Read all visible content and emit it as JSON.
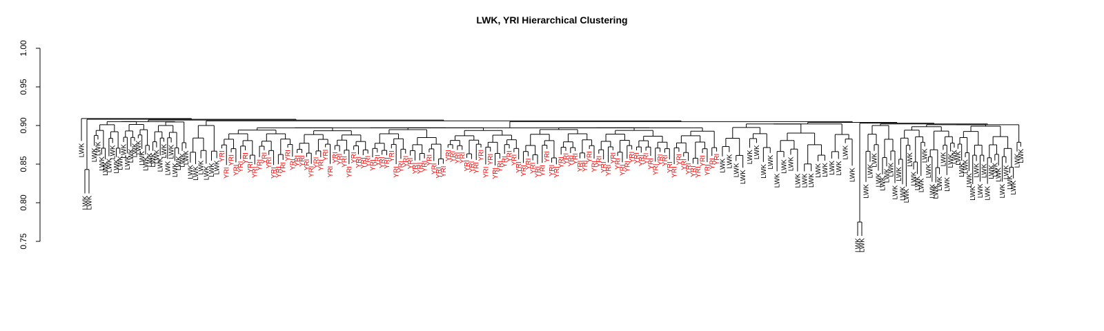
{
  "chart_data": {
    "type": "dendrogram",
    "title": "LWK, YRI Hierarchical Clustering",
    "xlabel": "",
    "ylabel": "",
    "ylim": [
      0.75,
      1.0
    ],
    "yticks": [
      "0.75",
      "0.80",
      "0.85",
      "0.90",
      "0.95",
      "1.00"
    ],
    "grid": false,
    "legend": "none",
    "leaf_label_groups": [
      "LWK",
      "YRI"
    ],
    "colors": {
      "LWK": "#000000",
      "YRI": "#ff0000",
      "branches": "#000000"
    },
    "root_height": 0.907,
    "top_split_heights": [
      0.907,
      0.905,
      0.904,
      0.903,
      0.902,
      0.901
    ],
    "clusters": [
      {
        "label": "LWK",
        "leaves": 26,
        "merge_height": 0.905,
        "leaf_height_min": 0.853,
        "leaf_height_max": 0.885
      },
      {
        "label": "LWK",
        "leaves": 6,
        "merge_height": 0.9,
        "leaf_height_min": 0.845,
        "leaf_height_max": 0.87
      },
      {
        "label": "YRI",
        "leaves": 106,
        "merge_height": 0.897,
        "leaf_height_min": 0.848,
        "leaf_height_max": 0.872
      },
      {
        "label": "LWK",
        "leaves": 20,
        "merge_height": 0.902,
        "leaf_height_min": 0.84,
        "leaf_height_max": 0.88
      },
      {
        "label": "LWK",
        "leaves": 8,
        "merge_height": 0.9,
        "leaf_height_min": 0.825,
        "leaf_height_max": 0.87
      },
      {
        "label": "LWK",
        "leaves": 34,
        "merge_height": 0.901,
        "leaf_height_min": 0.82,
        "leaf_height_max": 0.875
      }
    ],
    "outliers": [
      {
        "label": "LWK",
        "pair_height": 0.843,
        "leaf_height": 0.812
      },
      {
        "label": "LWK",
        "pair_height": 0.775,
        "leaf_height": 0.757
      }
    ]
  }
}
